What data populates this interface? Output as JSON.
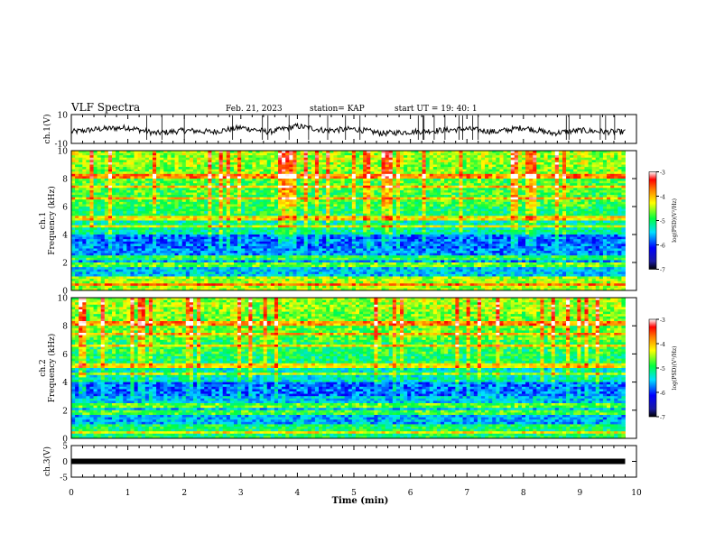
{
  "header": {
    "title": "VLF Spectra",
    "date": "Feb. 21, 2023",
    "station": "station= KAP",
    "start": "start  UT  =   19: 40: 1"
  },
  "chart_data": [
    {
      "type": "line",
      "panel": "ch1-waveform",
      "ylabel": "ch.1(V)",
      "ylim": [
        -10,
        10
      ],
      "yticks": [
        "10",
        "-10"
      ],
      "xlim": [
        0,
        10
      ],
      "x": [
        0,
        0.5,
        1,
        1.5,
        2,
        2.5,
        3,
        3.5,
        4,
        4.5,
        5,
        5.5,
        6,
        6.5,
        7,
        7.5,
        8,
        8.5,
        9,
        9.5,
        9.8
      ],
      "y": [
        -2,
        0,
        1,
        -3,
        -1,
        -2,
        1,
        -2,
        2,
        -1,
        0,
        -3,
        -2,
        -1,
        0,
        -2,
        1,
        -3,
        -1,
        -2,
        -2
      ]
    },
    {
      "type": "heatmap",
      "panel": "ch1-spectrogram",
      "ylabel_top": "ch.1",
      "ylabel": "Frequency  (kHz)",
      "yticks": [
        "0",
        "2",
        "4",
        "6",
        "8",
        "10"
      ],
      "ylim": [
        0,
        10
      ],
      "xlim": [
        0,
        10
      ],
      "data_end_min": 9.8,
      "colorbar": {
        "label": "log(PSD)(V²/Hz)",
        "ticks": [
          "-3",
          "-4",
          "-5",
          "-6",
          "-7"
        ],
        "range": [
          -7,
          -3
        ]
      },
      "band_means": [
        {
          "f_khz": 0.5,
          "log_psd": -4.5
        },
        {
          "f_khz": 1.5,
          "log_psd": -5.5
        },
        {
          "f_khz": 2.5,
          "log_psd": -5.7
        },
        {
          "f_khz": 3.5,
          "log_psd": -5.8
        },
        {
          "f_khz": 4.5,
          "log_psd": -5.2
        },
        {
          "f_khz": 5.5,
          "log_psd": -5.0
        },
        {
          "f_khz": 6.5,
          "log_psd": -4.8
        },
        {
          "f_khz": 7.5,
          "log_psd": -4.8
        },
        {
          "f_khz": 8.5,
          "log_psd": -4.6
        },
        {
          "f_khz": 9.5,
          "log_psd": -4.5
        }
      ]
    },
    {
      "type": "heatmap",
      "panel": "ch2-spectrogram",
      "ylabel_top": "ch.2",
      "ylabel": "Frequency  (kHz)",
      "yticks": [
        "0",
        "2",
        "4",
        "6",
        "8",
        "10"
      ],
      "ylim": [
        0,
        10
      ],
      "xlim": [
        0,
        10
      ],
      "data_end_min": 9.8,
      "colorbar": {
        "label": "log(PSD)(V²/Hz)",
        "ticks": [
          "-3",
          "-4",
          "-5",
          "-6",
          "-7"
        ],
        "range": [
          -7,
          -3
        ]
      },
      "band_means": [
        {
          "f_khz": 0.5,
          "log_psd": -5.0
        },
        {
          "f_khz": 1.5,
          "log_psd": -5.6
        },
        {
          "f_khz": 2.5,
          "log_psd": -5.5
        },
        {
          "f_khz": 3.5,
          "log_psd": -5.8
        },
        {
          "f_khz": 4.5,
          "log_psd": -5.3
        },
        {
          "f_khz": 5.5,
          "log_psd": -5.0
        },
        {
          "f_khz": 6.5,
          "log_psd": -4.9
        },
        {
          "f_khz": 7.5,
          "log_psd": -4.7
        },
        {
          "f_khz": 8.5,
          "log_psd": -4.6
        },
        {
          "f_khz": 9.5,
          "log_psd": -4.5
        }
      ]
    },
    {
      "type": "line",
      "panel": "ch3-waveform",
      "ylabel": "ch.3(V)",
      "ylim": [
        -5,
        5
      ],
      "yticks": [
        "5",
        "0",
        "-5"
      ],
      "xlim": [
        0,
        10
      ],
      "x": [
        0,
        9.8
      ],
      "y": [
        0,
        0
      ]
    }
  ],
  "xaxis": {
    "label": "Time  (min)",
    "ticks": [
      "0",
      "1",
      "2",
      "3",
      "4",
      "5",
      "6",
      "7",
      "8",
      "9",
      "10"
    ]
  }
}
